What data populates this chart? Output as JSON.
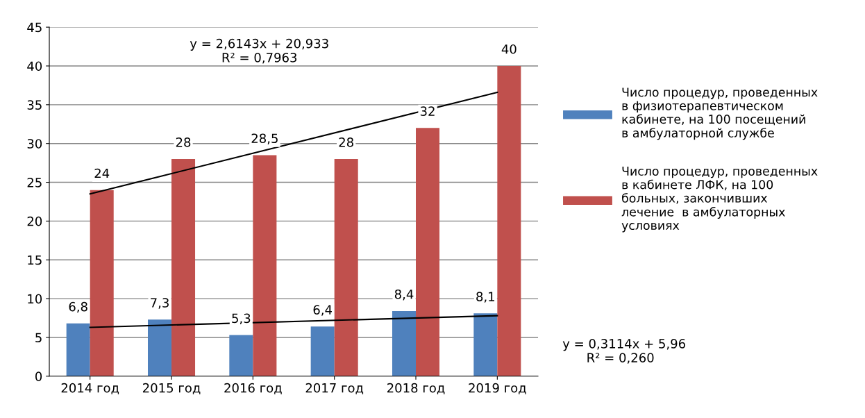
{
  "chart_data": {
    "type": "bar",
    "categories": [
      "2014 год",
      "2015 год",
      "2016 год",
      "2017 год",
      "2018 год",
      "2019 год"
    ],
    "series": [
      {
        "name": "Число процедур, проведенных в физиотерапевтическом кабинете, на 100 посещений в амбулаторной службе",
        "color": "#4f81bd",
        "values": [
          6.8,
          7.3,
          5.3,
          6.4,
          8.4,
          8.1
        ],
        "value_labels": [
          "6,8",
          "7,3",
          "5,3",
          "6,4",
          "8,4",
          "8,1"
        ]
      },
      {
        "name": "Число процедур, проведенных в кабинете ЛФК, на 100 больных, закончивших лечение  в амбулаторных условиях",
        "color": "#c0504d",
        "values": [
          24,
          28,
          28.5,
          28,
          32,
          40
        ],
        "value_labels": [
          "24",
          "28",
          "28,5",
          "28",
          "32",
          "40"
        ]
      },
      {
        "type": "line",
        "color": "#000000",
        "x": [
          "2014 год",
          "2019 год"
        ],
        "values": [
          23.5,
          36.6
        ]
      },
      {
        "type": "line",
        "color": "#000000",
        "x": [
          "2014 год",
          "2019 год"
        ],
        "values": [
          6.3,
          7.8
        ]
      }
    ],
    "ylim": [
      0,
      45
    ],
    "yticks": [
      0,
      5,
      10,
      15,
      20,
      25,
      30,
      35,
      40,
      45
    ],
    "grid": "y",
    "legend": "right",
    "annotations": [
      "y = 2,6143x + 20,933\nR² = 0,7963",
      "y = 0,3114x + 5,96\n      R² = 0,260"
    ]
  }
}
